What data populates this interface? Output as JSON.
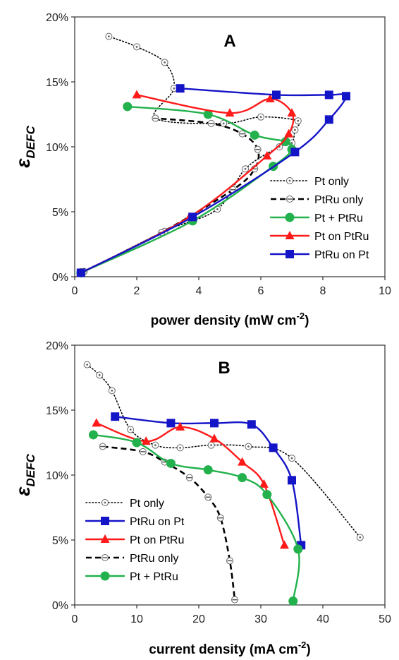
{
  "chart_data": [
    {
      "type": "line",
      "title": "A",
      "xlabel_main": "power density (mW cm",
      "xlabel_sup": "-2",
      "xlabel_end": ")",
      "ylabel_main": "ε",
      "ylabel_sub": "DEFC",
      "xlim": [
        0,
        10
      ],
      "ylim": [
        0,
        0.2
      ],
      "xticks": [
        "0",
        "2",
        "4",
        "6",
        "8",
        "10"
      ],
      "yticks": [
        "0%",
        "5%",
        "10%",
        "15%",
        "20%"
      ],
      "legend_position": "lower-right",
      "series": [
        {
          "name": "Pt only",
          "color": "#000000",
          "style": "dotted-open-circle",
          "x": [
            0.3,
            2.9,
            4.6,
            5.5,
            6.6,
            7.0,
            7.1,
            7.2,
            6.0,
            4.8,
            2.6,
            3.2,
            2.9,
            2.0,
            1.1
          ],
          "y": [
            0.004,
            0.035,
            0.052,
            0.083,
            0.1,
            0.103,
            0.113,
            0.12,
            0.123,
            0.118,
            0.122,
            0.145,
            0.165,
            0.177,
            0.185
          ]
        },
        {
          "name": "PtRu only",
          "color": "#000000",
          "style": "dashed-half-circle",
          "x": [
            0.3,
            2.8,
            5.1,
            5.8,
            5.9,
            5.4,
            4.4,
            2.6
          ],
          "y": [
            0.004,
            0.034,
            0.067,
            0.083,
            0.098,
            0.11,
            0.118,
            0.122
          ]
        },
        {
          "name": "Pt + PtRu",
          "color": "#22b14c",
          "style": "solid-circle",
          "x": [
            0.2,
            3.8,
            6.4,
            7.0,
            6.8,
            5.8,
            4.3,
            1.7
          ],
          "y": [
            0.003,
            0.043,
            0.085,
            0.098,
            0.104,
            0.109,
            0.125,
            0.131
          ]
        },
        {
          "name": "Pt on PtRu",
          "color": "#ff1a1a",
          "style": "solid-triangle",
          "x": [
            0.2,
            3.7,
            6.2,
            6.9,
            7.0,
            6.3,
            5.0,
            2.0
          ],
          "y": [
            0.003,
            0.046,
            0.093,
            0.11,
            0.126,
            0.137,
            0.126,
            0.14
          ]
        },
        {
          "name": "PtRu on Pt",
          "color": "#1515c8",
          "style": "solid-square",
          "x": [
            0.2,
            3.8,
            7.1,
            8.2,
            8.75,
            8.2,
            6.5,
            3.4
          ],
          "y": [
            0.003,
            0.046,
            0.096,
            0.121,
            0.139,
            0.14,
            0.14,
            0.145
          ]
        }
      ]
    },
    {
      "type": "line",
      "title": "B",
      "xlabel_main": "current density (mA cm",
      "xlabel_sup": "-2",
      "xlabel_end": ")",
      "ylabel_main": "ε",
      "ylabel_sub": "DEFC",
      "xlim": [
        0,
        50
      ],
      "ylim": [
        0,
        0.2
      ],
      "xticks": [
        "0",
        "10",
        "20",
        "30",
        "40",
        "50"
      ],
      "yticks": [
        "0%",
        "5%",
        "10%",
        "15%",
        "20%"
      ],
      "legend_position": "lower-left",
      "series": [
        {
          "name": "Pt only",
          "color": "#000000",
          "style": "dotted-open-circle",
          "x": [
            2.0,
            4.0,
            6.0,
            9.0,
            13.0,
            17.0,
            22.0,
            28.0,
            35.0,
            46.0
          ],
          "y": [
            0.185,
            0.177,
            0.165,
            0.135,
            0.123,
            0.121,
            0.123,
            0.122,
            0.113,
            0.052
          ]
        },
        {
          "name": "PtRu on Pt",
          "color": "#1515c8",
          "style": "solid-square",
          "x": [
            6.5,
            15.5,
            22.5,
            28.5,
            32.0,
            35.0,
            36.5
          ],
          "y": [
            0.145,
            0.14,
            0.14,
            0.139,
            0.121,
            0.096,
            0.046
          ]
        },
        {
          "name": "Pt on PtRu",
          "color": "#ff1a1a",
          "style": "solid-triangle",
          "x": [
            3.5,
            11.5,
            17.0,
            22.5,
            27.0,
            30.5,
            33.8
          ],
          "y": [
            0.14,
            0.126,
            0.137,
            0.128,
            0.11,
            0.093,
            0.046
          ]
        },
        {
          "name": "PtRu only",
          "color": "#000000",
          "style": "dashed-half-circle",
          "x": [
            4.5,
            11.0,
            14.5,
            18.5,
            21.5,
            23.5,
            25.0,
            25.8
          ],
          "y": [
            0.122,
            0.118,
            0.11,
            0.098,
            0.083,
            0.067,
            0.034,
            0.004
          ]
        },
        {
          "name": "Pt + PtRu",
          "color": "#22b14c",
          "style": "solid-circle",
          "x": [
            3.0,
            10.0,
            15.5,
            21.5,
            27.0,
            31.0,
            36.0,
            35.2
          ],
          "y": [
            0.131,
            0.125,
            0.109,
            0.104,
            0.098,
            0.085,
            0.043,
            0.003
          ]
        }
      ]
    }
  ]
}
